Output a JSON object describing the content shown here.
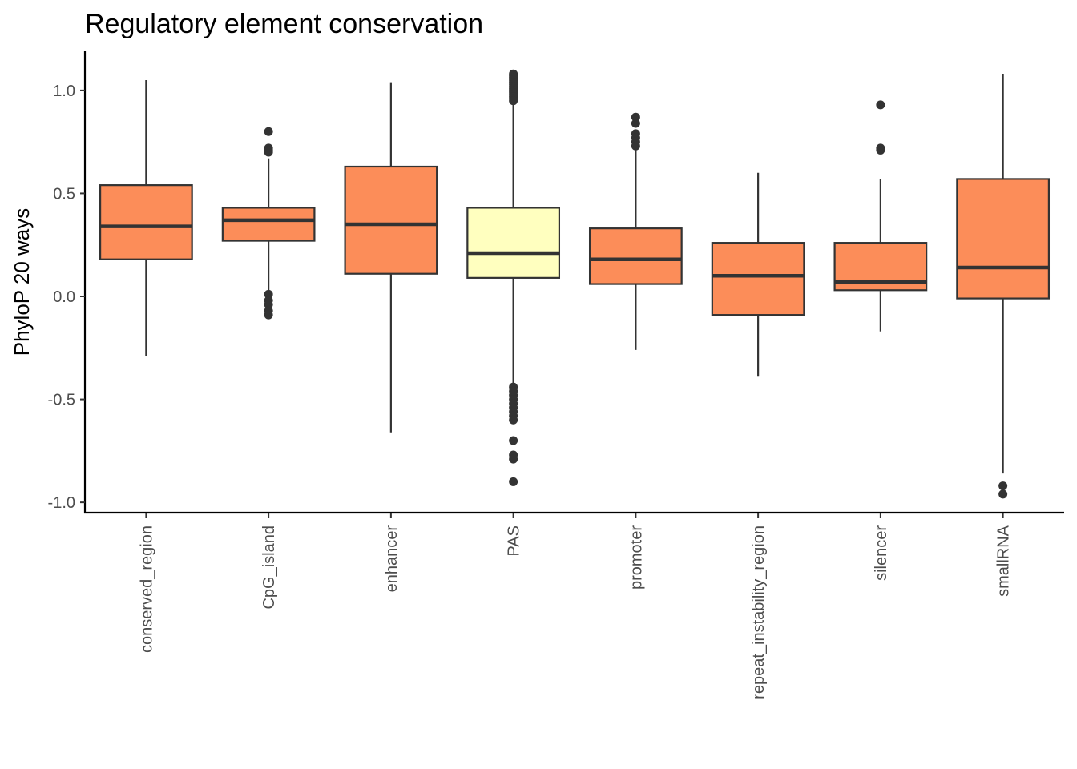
{
  "chart_data": {
    "type": "box",
    "title": "Regulatory element conservation",
    "xlabel": "",
    "ylabel": "PhyloP 20 ways",
    "ylim": [
      -1.05,
      1.19
    ],
    "yticks": [
      -1.0,
      -0.5,
      0.0,
      0.5,
      1.0
    ],
    "ytick_labels": [
      "-1.0",
      "-0.5",
      "0.0",
      "0.5",
      "1.0"
    ],
    "grid": false,
    "legend": "none",
    "colors": {
      "default": "#fc8d59",
      "highlight": "#ffffbf",
      "stroke": "#333333"
    },
    "boxes": [
      {
        "category": "conserved_region",
        "whisker_low": -0.29,
        "q1": 0.18,
        "median": 0.34,
        "q3": 0.54,
        "whisker_high": 1.05,
        "outliers": [],
        "highlight": false
      },
      {
        "category": "CpG_island",
        "whisker_low": 0.01,
        "q1": 0.27,
        "median": 0.37,
        "q3": 0.43,
        "whisker_high": 0.67,
        "outliers": [
          0.8,
          0.72,
          0.71,
          0.7,
          0.01,
          -0.02,
          -0.04,
          -0.07,
          -0.09
        ],
        "highlight": false
      },
      {
        "category": "enhancer",
        "whisker_low": -0.66,
        "q1": 0.11,
        "median": 0.35,
        "q3": 0.63,
        "whisker_high": 1.04,
        "outliers": [],
        "highlight": false
      },
      {
        "category": "PAS",
        "whisker_low": -0.42,
        "q1": 0.09,
        "median": 0.21,
        "q3": 0.43,
        "whisker_high": 0.93,
        "outliers": [
          1.08,
          1.07,
          1.06,
          1.05,
          1.04,
          1.03,
          1.02,
          1.01,
          1.0,
          0.99,
          0.98,
          0.97,
          0.96,
          0.95,
          -0.44,
          -0.46,
          -0.48,
          -0.5,
          -0.52,
          -0.54,
          -0.56,
          -0.58,
          -0.6,
          -0.7,
          -0.77,
          -0.79,
          -0.9
        ],
        "highlight": true
      },
      {
        "category": "promoter",
        "whisker_low": -0.26,
        "q1": 0.06,
        "median": 0.18,
        "q3": 0.33,
        "whisker_high": 0.72,
        "outliers": [
          0.87,
          0.84,
          0.79,
          0.77,
          0.75,
          0.73
        ],
        "highlight": false
      },
      {
        "category": "repeat_instability_region",
        "whisker_low": -0.39,
        "q1": -0.09,
        "median": 0.1,
        "q3": 0.26,
        "whisker_high": 0.6,
        "outliers": [],
        "highlight": false
      },
      {
        "category": "silencer",
        "whisker_low": -0.17,
        "q1": 0.03,
        "median": 0.07,
        "q3": 0.26,
        "whisker_high": 0.57,
        "outliers": [
          0.93,
          0.72,
          0.71
        ],
        "highlight": false
      },
      {
        "category": "smallRNA",
        "whisker_low": -0.86,
        "q1": -0.01,
        "median": 0.14,
        "q3": 0.57,
        "whisker_high": 1.08,
        "outliers": [
          -0.92,
          -0.96
        ],
        "highlight": false
      }
    ]
  }
}
